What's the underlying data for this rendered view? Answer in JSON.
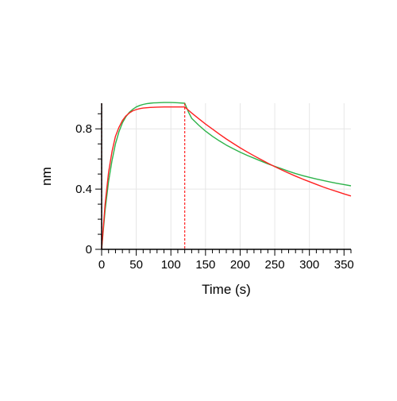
{
  "chart_data": {
    "type": "line",
    "xlabel": "Time (s)",
    "ylabel": "nm",
    "xlim": [
      0,
      360
    ],
    "ylim": [
      0,
      0.97
    ],
    "x_ticks": [
      0,
      50,
      100,
      150,
      200,
      250,
      300,
      350
    ],
    "y_ticks": [
      0,
      0.4,
      0.8
    ],
    "y_tick_labels": [
      "0",
      "0.4",
      "0.8"
    ],
    "grid": true,
    "association_end": 120,
    "colors": {
      "measured": "#2db34a",
      "fit": "#ff2020",
      "marker": "#ff2020",
      "grid": "#e6e6e6"
    },
    "series": [
      {
        "color": "#2db34a",
        "x": [
          0,
          5,
          10,
          15,
          20,
          25,
          30,
          35,
          40,
          45,
          50,
          55,
          60,
          65,
          70,
          75,
          80,
          90,
          100,
          110,
          120,
          125,
          130,
          140,
          150,
          160,
          170,
          180,
          190,
          200,
          210,
          220,
          230,
          240,
          250,
          260,
          270,
          280,
          290,
          300,
          310,
          320,
          330,
          340,
          350,
          360
        ],
        "y": [
          0.0,
          0.26,
          0.45,
          0.59,
          0.7,
          0.78,
          0.84,
          0.88,
          0.91,
          0.93,
          0.945,
          0.955,
          0.962,
          0.967,
          0.97,
          0.972,
          0.973,
          0.975,
          0.975,
          0.973,
          0.97,
          0.915,
          0.87,
          0.825,
          0.785,
          0.75,
          0.72,
          0.692,
          0.668,
          0.645,
          0.624,
          0.605,
          0.586,
          0.568,
          0.551,
          0.535,
          0.518,
          0.503,
          0.49,
          0.478,
          0.467,
          0.457,
          0.447,
          0.438,
          0.43,
          0.422
        ]
      },
      {
        "color": "#ff2020",
        "x": [
          0,
          5,
          10,
          15,
          20,
          25,
          30,
          35,
          40,
          45,
          50,
          55,
          60,
          65,
          70,
          80,
          90,
          100,
          110,
          120,
          125,
          130,
          140,
          150,
          160,
          170,
          180,
          190,
          200,
          210,
          220,
          230,
          240,
          250,
          260,
          270,
          280,
          290,
          300,
          310,
          320,
          330,
          340,
          350,
          360
        ],
        "y": [
          0.0,
          0.3,
          0.51,
          0.65,
          0.75,
          0.81,
          0.855,
          0.885,
          0.905,
          0.92,
          0.928,
          0.934,
          0.938,
          0.94,
          0.942,
          0.944,
          0.945,
          0.945,
          0.945,
          0.945,
          0.925,
          0.905,
          0.868,
          0.832,
          0.798,
          0.765,
          0.733,
          0.703,
          0.674,
          0.647,
          0.621,
          0.596,
          0.572,
          0.549,
          0.527,
          0.506,
          0.486,
          0.467,
          0.449,
          0.431,
          0.414,
          0.398,
          0.383,
          0.368,
          0.354
        ]
      }
    ]
  }
}
